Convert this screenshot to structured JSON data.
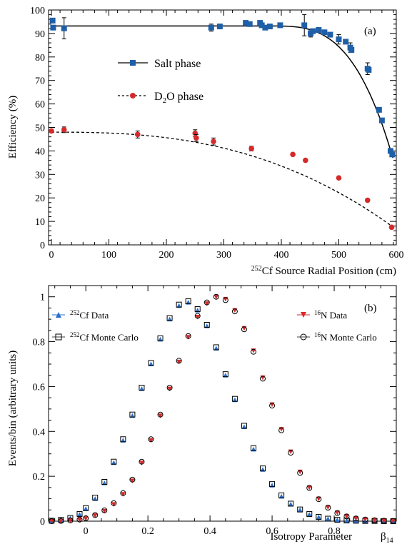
{
  "chart_data": [
    {
      "panel": "(a)",
      "type": "scatter",
      "xlabel_sup": "252",
      "xlabel_text": "Cf Source Radial Position (cm)",
      "ylabel": "Efficiency (%)",
      "xlim": [
        -5,
        600
      ],
      "ylim": [
        0,
        100
      ],
      "xticks": [
        0,
        100,
        200,
        300,
        400,
        500,
        600
      ],
      "yticks": [
        0,
        10,
        20,
        30,
        40,
        50,
        60,
        70,
        80,
        90,
        100
      ],
      "grid": false,
      "series": [
        {
          "name": "Salt phase",
          "color": "#1f5fa8",
          "marker": "square",
          "fit_line": "solid",
          "x": [
            2,
            3,
            22,
            278,
            293,
            338,
            345,
            363,
            366,
            372,
            380,
            398,
            440,
            451,
            455,
            465,
            475,
            485,
            500,
            512,
            520,
            522,
            550,
            552,
            570,
            575,
            590,
            593
          ],
          "y": [
            95.5,
            92.5,
            92.2,
            92.5,
            93.0,
            94.5,
            94.0,
            94.5,
            93.5,
            92.5,
            93.0,
            93.5,
            93.5,
            90.0,
            91.0,
            91.5,
            90.5,
            89.5,
            87.5,
            86.5,
            84.0,
            83.0,
            75.0,
            74.5,
            57.5,
            53.0,
            40.0,
            38.5
          ],
          "yerr": [
            0,
            0,
            4.5,
            1.5,
            1.0,
            0,
            0,
            0,
            0,
            0,
            0,
            0,
            4.5,
            1.5,
            0,
            0,
            0,
            0,
            2.0,
            0,
            2.0,
            0,
            2.5,
            0,
            0,
            0,
            0,
            0
          ]
        },
        {
          "name": "D2O phase",
          "name_base": "D",
          "name_sub": "2",
          "name_rest": "O phase",
          "color": "#d42a2a",
          "marker": "circle",
          "fit_line": "dashed",
          "x": [
            0,
            22,
            150,
            250,
            252,
            282,
            348,
            420,
            442,
            500,
            550,
            592
          ],
          "y": [
            48.5,
            49.0,
            47.0,
            47.5,
            45.5,
            44.0,
            41.0,
            38.5,
            36.0,
            28.5,
            19.0,
            7.5
          ],
          "yerr": [
            0,
            1.2,
            1.5,
            1.5,
            1.5,
            1.5,
            1.0,
            0,
            0,
            0,
            0,
            0
          ]
        }
      ]
    },
    {
      "panel": "(b)",
      "type": "scatter",
      "xlabel": "Isotropy Parameter",
      "xlabel_right_base": "β",
      "xlabel_right_sub": "14",
      "ylabel": "Events/bin (arbitrary units)",
      "xlim": [
        -0.12,
        1.0
      ],
      "ylim": [
        0,
        1.05
      ],
      "xticks": [
        0,
        0.2,
        0.4,
        0.6,
        0.8
      ],
      "xtick_labels": [
        "0",
        "0.2",
        "0.4",
        "0.6",
        "0.8"
      ],
      "yticks": [
        0,
        0.2,
        0.4,
        0.6,
        0.8,
        1
      ],
      "ytick_labels": [
        "0",
        "0.2",
        "0.4",
        "0.6",
        "0.8",
        "1"
      ],
      "grid": false,
      "x": [
        -0.11,
        -0.08,
        -0.05,
        -0.02,
        0.0,
        0.03,
        0.06,
        0.09,
        0.12,
        0.15,
        0.18,
        0.21,
        0.24,
        0.27,
        0.3,
        0.33,
        0.36,
        0.39,
        0.42,
        0.45,
        0.48,
        0.51,
        0.54,
        0.57,
        0.6,
        0.63,
        0.66,
        0.69,
        0.72,
        0.75,
        0.78,
        0.81,
        0.84,
        0.87,
        0.9,
        0.93,
        0.96,
        0.99
      ],
      "series": [
        {
          "name_sup": "252",
          "name_text": "Cf Data",
          "color": "#2a6fc9",
          "marker": "triangle",
          "legend_side": "left",
          "values": [
            0.002,
            0.006,
            0.013,
            0.03,
            0.055,
            0.1,
            0.17,
            0.26,
            0.36,
            0.47,
            0.59,
            0.7,
            0.81,
            0.9,
            0.96,
            0.975,
            0.94,
            0.87,
            0.77,
            0.65,
            0.54,
            0.42,
            0.32,
            0.23,
            0.16,
            0.11,
            0.075,
            0.05,
            0.03,
            0.018,
            0.01,
            0.005,
            0.003,
            0.002,
            0.001,
            0.001,
            0.0,
            0.0
          ]
        },
        {
          "name_sup": "252",
          "name_text": "Cf Monte Carlo",
          "color": "#000000",
          "marker": "open-square",
          "legend_side": "left",
          "values": [
            0.002,
            0.006,
            0.014,
            0.032,
            0.058,
            0.105,
            0.175,
            0.265,
            0.365,
            0.475,
            0.595,
            0.705,
            0.815,
            0.905,
            0.965,
            0.98,
            0.945,
            0.875,
            0.775,
            0.655,
            0.545,
            0.425,
            0.325,
            0.235,
            0.165,
            0.115,
            0.078,
            0.052,
            0.032,
            0.019,
            0.011,
            0.006,
            0.003,
            0.002,
            0.001,
            0.001,
            0.0,
            0.0
          ]
        },
        {
          "name_sup": "16",
          "name_text": "N Data",
          "color": "#d42a2a",
          "marker": "down-triangle",
          "legend_side": "right",
          "values": [
            0.0,
            0.001,
            0.003,
            0.006,
            0.012,
            0.025,
            0.045,
            0.075,
            0.12,
            0.18,
            0.26,
            0.36,
            0.47,
            0.59,
            0.71,
            0.82,
            0.91,
            0.97,
            1.0,
            0.99,
            0.94,
            0.86,
            0.76,
            0.64,
            0.52,
            0.41,
            0.31,
            0.22,
            0.15,
            0.1,
            0.062,
            0.038,
            0.022,
            0.013,
            0.008,
            0.004,
            0.002,
            0.001
          ]
        },
        {
          "name_sup": "16",
          "name_text": "N Monte Carlo",
          "color": "#000000",
          "marker": "open-circle",
          "legend_side": "right",
          "values": [
            0.0,
            0.001,
            0.003,
            0.007,
            0.013,
            0.027,
            0.048,
            0.08,
            0.125,
            0.185,
            0.265,
            0.365,
            0.475,
            0.595,
            0.715,
            0.825,
            0.915,
            0.975,
            1.0,
            0.985,
            0.935,
            0.855,
            0.755,
            0.635,
            0.515,
            0.405,
            0.305,
            0.215,
            0.148,
            0.098,
            0.06,
            0.036,
            0.021,
            0.012,
            0.007,
            0.004,
            0.002,
            0.001
          ]
        }
      ]
    }
  ]
}
